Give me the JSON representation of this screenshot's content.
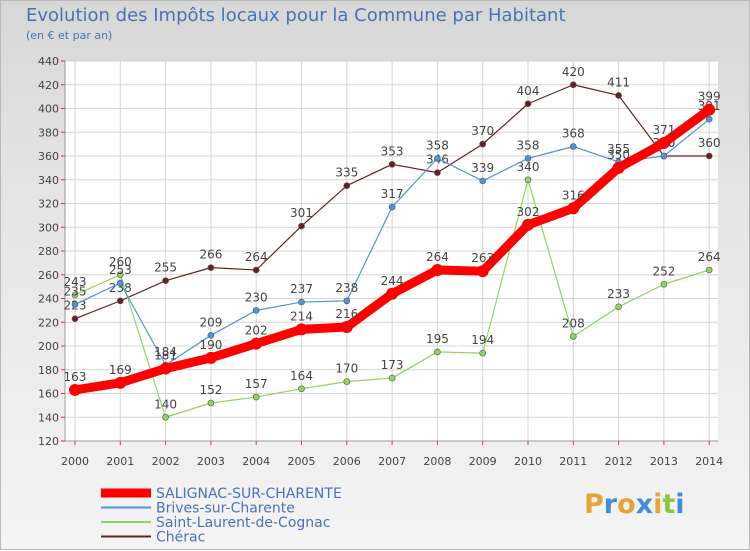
{
  "title": "Evolution des Impôts locaux pour la Commune par Habitant",
  "subtitle": "(en € et par an)",
  "logo": {
    "letters": [
      "P",
      "r",
      "o",
      "x",
      "i",
      "t",
      "i"
    ],
    "colors": [
      "#e5a33a",
      "#3d8fd6",
      "#e5a33a",
      "#3d8fd6",
      "#e5a33a",
      "#8dc63f",
      "#3d8fd6"
    ]
  },
  "chart_data": {
    "type": "line",
    "title": "Evolution des Impôts locaux pour la Commune par Habitant",
    "subtitle": "(en € et par an)",
    "x": [
      "2000",
      "2001",
      "2002",
      "2003",
      "2004",
      "2005",
      "2006",
      "2007",
      "2008",
      "2009",
      "2010",
      "2011",
      "2012",
      "2013",
      "2014"
    ],
    "ylim": [
      120,
      440
    ],
    "yticks": [
      120,
      140,
      160,
      180,
      200,
      220,
      240,
      260,
      280,
      300,
      320,
      340,
      360,
      380,
      400,
      420,
      440
    ],
    "grid": true,
    "legend_position": "bottom-left",
    "series": [
      {
        "name": "Chérac",
        "color": "#6b1f22",
        "width": 1.2,
        "marker_r": 3,
        "values": [
          223,
          238,
          255,
          266,
          264,
          301,
          335,
          353,
          346,
          370,
          404,
          420,
          411,
          360,
          360
        ],
        "labels": [
          "223",
          "238",
          "255",
          "266",
          "264",
          "301",
          "335",
          "353",
          "346",
          "370",
          "404",
          "420",
          "411",
          "360",
          "360"
        ]
      },
      {
        "name": "Saint-Laurent-de-Cognac",
        "color": "#8ed65e",
        "width": 1.2,
        "marker_r": 3,
        "values": [
          243,
          260,
          140,
          152,
          157,
          164,
          170,
          173,
          195,
          194,
          340,
          208,
          233,
          252,
          264
        ],
        "labels": [
          "243",
          "260",
          "140",
          "152",
          "157",
          "164",
          "170",
          "173",
          "195",
          "194",
          "340",
          "208",
          "233",
          "252",
          "264"
        ]
      },
      {
        "name": "Brives-sur-Charente",
        "color": "#4f95d8",
        "width": 1.2,
        "marker_r": 3,
        "values": [
          235,
          253,
          184,
          209,
          230,
          237,
          238,
          317,
          358,
          339,
          358,
          368,
          355,
          360,
          391
        ],
        "labels": [
          "235",
          "253",
          "184",
          "209",
          "230",
          "237",
          "238",
          "317",
          "358",
          "339",
          "358",
          "368",
          "355",
          "360",
          "391"
        ]
      },
      {
        "name": "SALIGNAC-SUR-CHARENTE",
        "color": "#ff0000",
        "width": 9,
        "marker_r": 6,
        "values": [
          163,
          169,
          181,
          190,
          202,
          214,
          216,
          244,
          264,
          263,
          302,
          316,
          350,
          371,
          399
        ],
        "labels": [
          "163",
          "169",
          "181",
          "190",
          "202",
          "214",
          "216",
          "244",
          "264",
          "263",
          "302",
          "316",
          "350",
          "371",
          "399"
        ]
      }
    ],
    "legend": [
      {
        "name": "SALIGNAC-SUR-CHARENTE",
        "color": "#ff0000",
        "thick": true
      },
      {
        "name": "Brives-sur-Charente",
        "color": "#4f95d8",
        "thick": false
      },
      {
        "name": "Saint-Laurent-de-Cognac",
        "color": "#8ed65e",
        "thick": false
      },
      {
        "name": "Chérac",
        "color": "#6b1f22",
        "thick": false
      }
    ]
  }
}
